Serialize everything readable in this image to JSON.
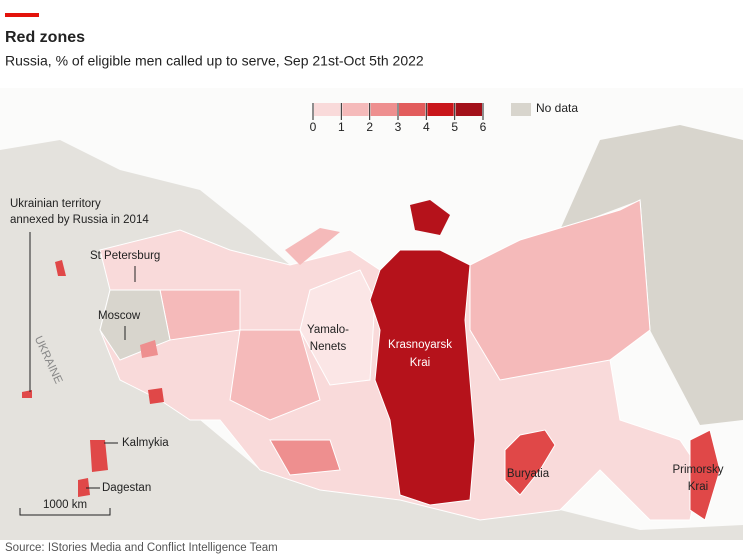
{
  "header": {
    "title": "Red zones",
    "subtitle": "Russia, % of eligible men called up to serve, Sep 21st-Oct 5th 2022"
  },
  "legend": {
    "bins": [
      0,
      1,
      2,
      3,
      4,
      5,
      6
    ],
    "colors": [
      "#f9dada",
      "#f5baba",
      "#ee8f8f",
      "#e25c5c",
      "#c9161b",
      "#a3111a"
    ],
    "no_data": "No data",
    "no_data_color": "#d8d5cd"
  },
  "map": {
    "labels": {
      "annexed": [
        "Ukrainian territory",
        "annexed by Russia in 2014"
      ],
      "st_petersburg": "St Petersburg",
      "moscow": "Moscow",
      "ukraine": "UKRAINE",
      "yamalo": [
        "Yamalo-",
        "Nenets"
      ],
      "krasnoyarsk": [
        "Krasnoyarsk",
        "Krai"
      ],
      "buryatia": "Buryatia",
      "primorsky": [
        "Primorsky",
        "Krai"
      ],
      "kalmykia": "Kalmykia",
      "dagestan": "Dagestan"
    },
    "scale": "1000 km"
  },
  "footer": {
    "source": "Source: IStories Media and Conflict Intelligence Team"
  }
}
